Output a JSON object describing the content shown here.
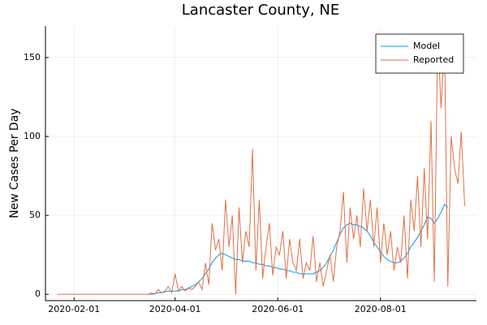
{
  "chart_data": {
    "type": "line",
    "title": "Lancaster County, NE",
    "y_label": "New Cases Per Day",
    "x": [
      "2020-01-22",
      "2020-01-24",
      "2020-01-26",
      "2020-01-28",
      "2020-01-30",
      "2020-02-01",
      "2020-02-03",
      "2020-02-05",
      "2020-02-07",
      "2020-02-09",
      "2020-02-11",
      "2020-02-13",
      "2020-02-15",
      "2020-02-17",
      "2020-02-19",
      "2020-02-21",
      "2020-02-23",
      "2020-02-25",
      "2020-02-27",
      "2020-02-29",
      "2020-03-02",
      "2020-03-04",
      "2020-03-06",
      "2020-03-08",
      "2020-03-10",
      "2020-03-12",
      "2020-03-14",
      "2020-03-16",
      "2020-03-18",
      "2020-03-20",
      "2020-03-22",
      "2020-03-24",
      "2020-03-26",
      "2020-03-28",
      "2020-03-30",
      "2020-04-01",
      "2020-04-03",
      "2020-04-05",
      "2020-04-07",
      "2020-04-09",
      "2020-04-11",
      "2020-04-13",
      "2020-04-15",
      "2020-04-17",
      "2020-04-19",
      "2020-04-21",
      "2020-04-23",
      "2020-04-25",
      "2020-04-27",
      "2020-04-29",
      "2020-05-01",
      "2020-05-03",
      "2020-05-05",
      "2020-05-07",
      "2020-05-09",
      "2020-05-11",
      "2020-05-13",
      "2020-05-15",
      "2020-05-17",
      "2020-05-19",
      "2020-05-21",
      "2020-05-23",
      "2020-05-25",
      "2020-05-27",
      "2020-05-29",
      "2020-05-31",
      "2020-06-02",
      "2020-06-04",
      "2020-06-06",
      "2020-06-08",
      "2020-06-10",
      "2020-06-12",
      "2020-06-14",
      "2020-06-16",
      "2020-06-18",
      "2020-06-20",
      "2020-06-22",
      "2020-06-24",
      "2020-06-26",
      "2020-06-28",
      "2020-06-30",
      "2020-07-02",
      "2020-07-04",
      "2020-07-06",
      "2020-07-08",
      "2020-07-10",
      "2020-07-12",
      "2020-07-14",
      "2020-07-16",
      "2020-07-18",
      "2020-07-20",
      "2020-07-22",
      "2020-07-24",
      "2020-07-26",
      "2020-07-28",
      "2020-07-30",
      "2020-08-01",
      "2020-08-03",
      "2020-08-05",
      "2020-08-07",
      "2020-08-09",
      "2020-08-11",
      "2020-08-13",
      "2020-08-15",
      "2020-08-17",
      "2020-08-19",
      "2020-08-21",
      "2020-08-23",
      "2020-08-25",
      "2020-08-27",
      "2020-08-29",
      "2020-08-31",
      "2020-09-02",
      "2020-09-04",
      "2020-09-06",
      "2020-09-08",
      "2020-09-10",
      "2020-09-12",
      "2020-09-14",
      "2020-09-16",
      "2020-09-18",
      "2020-09-20"
    ],
    "series": [
      {
        "name": "Model",
        "color": "#009af9",
        "values": [
          null,
          null,
          null,
          null,
          null,
          null,
          null,
          null,
          null,
          null,
          null,
          null,
          null,
          null,
          null,
          null,
          null,
          null,
          null,
          null,
          null,
          null,
          null,
          null,
          null,
          null,
          null,
          0,
          0,
          0.5,
          1,
          1,
          1.5,
          2,
          2,
          2,
          2,
          3,
          3,
          4,
          5,
          6,
          8,
          10,
          13,
          16,
          20,
          23,
          25,
          26,
          25,
          24,
          23,
          22,
          22,
          21,
          21,
          21,
          20,
          20,
          19,
          19,
          18,
          18,
          17,
          17,
          16,
          16,
          15,
          15,
          14,
          14,
          13,
          13,
          13,
          13,
          13,
          14,
          15,
          17,
          20,
          24,
          28,
          33,
          38,
          42,
          44,
          45,
          44,
          44,
          43,
          42,
          40,
          37,
          33,
          30,
          27,
          24,
          22,
          21,
          20,
          20,
          21,
          23,
          26,
          30,
          33,
          36,
          40,
          44,
          49,
          48,
          45,
          48,
          52,
          57,
          55,
          null,
          null,
          null,
          null,
          null
        ]
      },
      {
        "name": "Reported",
        "color": "#e26f46",
        "values": [
          0,
          0,
          0,
          0,
          0,
          0,
          0,
          0,
          0,
          0,
          0,
          0,
          0,
          0,
          0,
          0,
          0,
          0,
          0,
          0,
          0,
          0,
          0,
          0,
          0,
          0,
          0,
          0,
          1,
          0,
          3,
          1,
          2,
          5,
          1,
          13,
          2,
          5,
          2,
          4,
          3,
          5,
          8,
          3,
          20,
          6,
          45,
          28,
          35,
          15,
          60,
          30,
          50,
          0,
          55,
          20,
          40,
          30,
          92,
          15,
          60,
          10,
          30,
          45,
          12,
          30,
          25,
          40,
          10,
          35,
          20,
          15,
          35,
          10,
          20,
          15,
          37,
          8,
          20,
          5,
          15,
          25,
          8,
          30,
          40,
          65,
          20,
          55,
          35,
          50,
          30,
          67,
          40,
          60,
          30,
          55,
          20,
          45,
          25,
          40,
          15,
          30,
          20,
          50,
          10,
          60,
          40,
          75,
          30,
          80,
          35,
          110,
          8,
          165,
          118,
          160,
          5,
          100,
          80,
          70,
          103,
          56
        ]
      }
    ],
    "xlim": [
      "2020-01-15",
      "2020-09-27"
    ],
    "xticks": [
      "2020-02-01",
      "2020-04-01",
      "2020-06-01",
      "2020-08-01"
    ],
    "ylim": [
      -4,
      170
    ],
    "yticks": [
      0,
      50,
      100,
      150
    ],
    "grid": true,
    "legend": "top-right"
  }
}
